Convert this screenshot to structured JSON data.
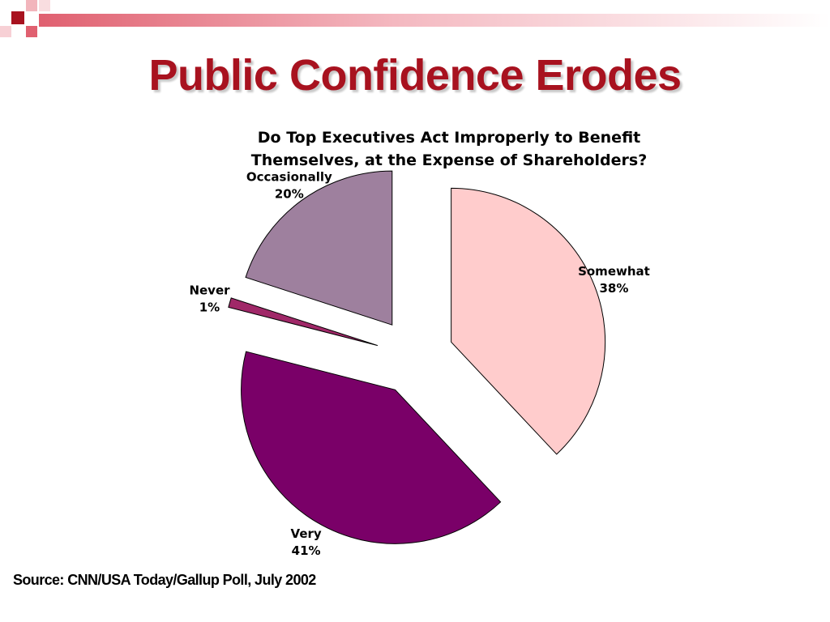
{
  "slide": {
    "title": "Public Confidence Erodes",
    "source": "Source: CNN/USA Today/Gallup Poll, July 2002",
    "accent_color": "#a8121f"
  },
  "chart_data": {
    "type": "pie",
    "title_lines": [
      "Do Top Executives Act Improperly to Benefit",
      "Themselves, at the Expense of Shareholders?"
    ],
    "exploded": true,
    "slices": [
      {
        "label": "Somewhat",
        "value": 38,
        "value_label": "38%",
        "color": "#ffcccc"
      },
      {
        "label": "Very",
        "value": 41,
        "value_label": "41%",
        "color": "#7a0068"
      },
      {
        "label": "Never",
        "value": 1,
        "value_label": "1%",
        "color": "#a02868"
      },
      {
        "label": "Occasionally",
        "value": 20,
        "value_label": "20%",
        "color": "#9e809e"
      }
    ]
  }
}
